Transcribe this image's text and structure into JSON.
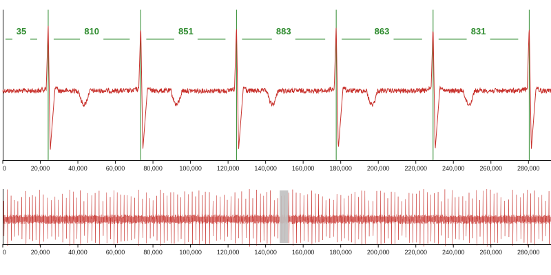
{
  "colors": {
    "signal": "#c8322d",
    "beat_marker": "#2e8b2e",
    "rr_label": "#2e8b2e",
    "axis": "#111111",
    "brush": "#c0c0c0"
  },
  "chart_data": [
    {
      "type": "line",
      "name_role": "detail-ecg-trace",
      "xlim": [
        0,
        292000
      ],
      "x_ticks": [
        0,
        20000,
        40000,
        60000,
        80000,
        100000,
        120000,
        140000,
        160000,
        180000,
        200000,
        220000,
        240000,
        260000,
        280000
      ],
      "x_tick_labels": [
        "0",
        "20,000",
        "40,000",
        "60,000",
        "80,000",
        "100,000",
        "120,000",
        "140,000",
        "160,000",
        "180,000",
        "200,000",
        "220,000",
        "240,000",
        "260,000",
        "280,000"
      ],
      "beats_x": [
        24200,
        73500,
        124500,
        177600,
        229200,
        280400
      ],
      "rr_intervals": [
        {
          "label": "35",
          "from_x": -10000,
          "to_x": 24200
        },
        {
          "label": "810",
          "from_x": 24200,
          "to_x": 73500
        },
        {
          "label": "851",
          "from_x": 73500,
          "to_x": 124500
        },
        {
          "label": "883",
          "from_x": 124500,
          "to_x": 177600
        },
        {
          "label": "863",
          "from_x": 177600,
          "to_x": 229200
        },
        {
          "label": "831",
          "from_x": 229200,
          "to_x": 280400
        }
      ]
    },
    {
      "type": "line",
      "name_role": "overview-ecg-trace",
      "xlim": [
        0,
        292000
      ],
      "x_ticks": [
        0,
        20000,
        40000,
        60000,
        80000,
        100000,
        120000,
        140000,
        160000,
        180000,
        200000,
        220000,
        240000,
        260000,
        280000
      ],
      "x_tick_labels": [
        "0",
        "20,000",
        "40,000",
        "60,000",
        "80,000",
        "100,000",
        "120,000",
        "140,000",
        "160,000",
        "180,000",
        "200,000",
        "220,000",
        "240,000",
        "260,000",
        "280,000"
      ],
      "brush_window": [
        147500,
        152000
      ]
    }
  ]
}
